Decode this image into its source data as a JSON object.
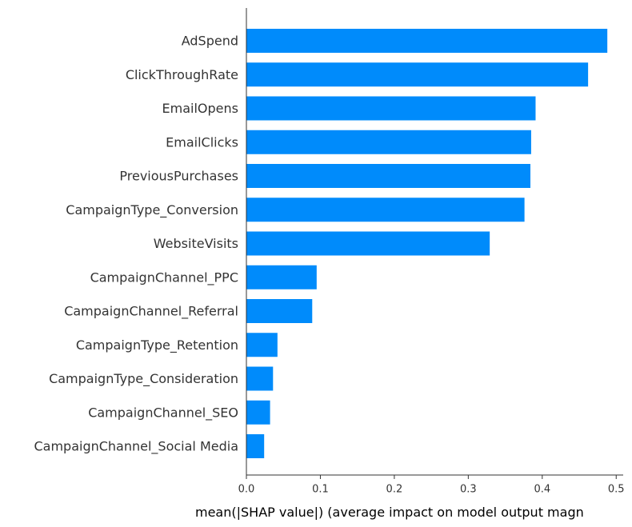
{
  "chart_data": {
    "type": "bar",
    "orientation": "horizontal",
    "categories": [
      "AdSpend",
      "ClickThroughRate",
      "EmailOpens",
      "EmailClicks",
      "PreviousPurchases",
      "CampaignType_Conversion",
      "WebsiteVisits",
      "CampaignChannel_PPC",
      "CampaignChannel_Referral",
      "CampaignType_Retention",
      "CampaignType_Consideration",
      "CampaignChannel_SEO",
      "CampaignChannel_Social Media"
    ],
    "values": [
      0.488,
      0.462,
      0.391,
      0.385,
      0.384,
      0.376,
      0.329,
      0.095,
      0.089,
      0.042,
      0.036,
      0.032,
      0.024
    ],
    "xlabel": "mean(|SHAP value|) (average impact on model output magn",
    "xticks": [
      0,
      0.1,
      0.2,
      0.3,
      0.4,
      0.5
    ],
    "xtick_labels": [
      "0.0",
      "0.1",
      "0.2",
      "0.3",
      "0.4",
      "0.5"
    ],
    "xlim": [
      0,
      0.512
    ],
    "grid": false,
    "bar_color": "#008bfb",
    "text_color": "#333333"
  }
}
